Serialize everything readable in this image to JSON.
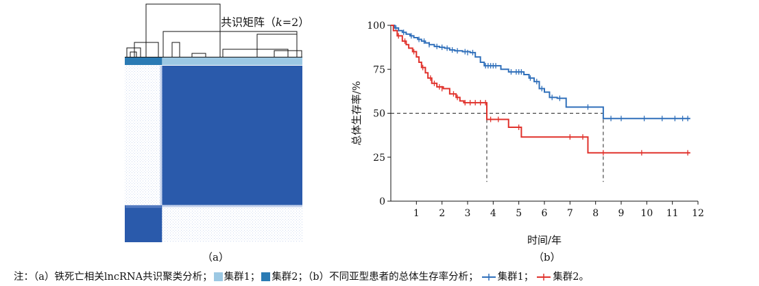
{
  "panel_a": {
    "title": "共识矩阵（k=2）",
    "label": "（a）",
    "colors": {
      "cluster1": "#9cc8e3",
      "cluster2": "#2b7bb4",
      "matrix_high": "#2a5aab",
      "matrix_low": "#ffffff"
    }
  },
  "panel_b": {
    "label": "（b）",
    "colors": {
      "cluster1": "#2f6fba",
      "cluster2": "#e0302a",
      "median_line": "#222222"
    }
  },
  "note": {
    "prefix": "注：（a）铁死亡相关lncRNA共识聚类分析；",
    "cluster1_a": "集群1；",
    "cluster2_a": "集群2；",
    "middle": "（b）不同亚型患者的总体生存率分析；",
    "cluster1_b": "集群1；",
    "cluster2_b": "集群2。"
  },
  "chart_data": [
    {
      "type": "heatmap",
      "title": "共识矩阵（k=2）",
      "clusters": [
        {
          "name": "集群2",
          "color": "#2b7bb4",
          "share": 0.21
        },
        {
          "name": "集群1",
          "color": "#9cc8e3",
          "share": 0.79
        }
      ],
      "blocks": [
        {
          "row": "集群1",
          "col": "集群1",
          "consensus": 1
        },
        {
          "row": "集群2",
          "col": "集群2",
          "consensus": 1
        },
        {
          "row": "集群1",
          "col": "集群2",
          "consensus": 0
        },
        {
          "row": "集群2",
          "col": "集群1",
          "consensus": 0
        }
      ]
    },
    {
      "type": "line",
      "xlabel": "时间/年",
      "ylabel": "总体生存率/%",
      "xlim": [
        0,
        12
      ],
      "ylim": [
        0,
        100
      ],
      "xticks": [
        1,
        2,
        3,
        4,
        5,
        6,
        7,
        8,
        9,
        10,
        11,
        12
      ],
      "yticks": [
        0,
        25,
        50,
        75,
        100
      ],
      "median_line": {
        "y": 50,
        "x_cluster2": 3.75,
        "x_cluster1": 8.3
      },
      "series": [
        {
          "name": "集群1",
          "color": "#2f6fba",
          "steps": [
            [
              0,
              100
            ],
            [
              0.15,
              98.5
            ],
            [
              0.3,
              97
            ],
            [
              0.45,
              96
            ],
            [
              0.6,
              95
            ],
            [
              0.75,
              94
            ],
            [
              0.9,
              93
            ],
            [
              1.05,
              92
            ],
            [
              1.2,
              91
            ],
            [
              1.35,
              90
            ],
            [
              1.5,
              89
            ],
            [
              1.7,
              88
            ],
            [
              1.9,
              87.5
            ],
            [
              2.1,
              87
            ],
            [
              2.3,
              86
            ],
            [
              2.5,
              85.5
            ],
            [
              2.8,
              85
            ],
            [
              3.1,
              84.5
            ],
            [
              3.3,
              82
            ],
            [
              3.5,
              79
            ],
            [
              3.65,
              77
            ],
            [
              4.3,
              75
            ],
            [
              4.6,
              73.5
            ],
            [
              5.2,
              72
            ],
            [
              5.4,
              70
            ],
            [
              5.6,
              68
            ],
            [
              5.8,
              64
            ],
            [
              6.0,
              62
            ],
            [
              6.2,
              59
            ],
            [
              6.5,
              58.5
            ],
            [
              6.85,
              53.5
            ],
            [
              8.3,
              47
            ],
            [
              11.7,
              47
            ]
          ],
          "censored": [
            [
              0.2,
              98.5
            ],
            [
              0.5,
              96
            ],
            [
              0.8,
              94
            ],
            [
              1.1,
              92
            ],
            [
              1.3,
              91
            ],
            [
              1.5,
              89
            ],
            [
              1.8,
              88
            ],
            [
              2.0,
              87.5
            ],
            [
              2.2,
              87
            ],
            [
              2.4,
              86
            ],
            [
              2.6,
              85.5
            ],
            [
              2.9,
              85
            ],
            [
              3.0,
              84.5
            ],
            [
              3.2,
              84.5
            ],
            [
              3.7,
              77
            ],
            [
              3.8,
              77
            ],
            [
              3.9,
              77
            ],
            [
              4.0,
              77
            ],
            [
              4.1,
              77
            ],
            [
              4.7,
              73.5
            ],
            [
              4.9,
              73.5
            ],
            [
              5.0,
              73.5
            ],
            [
              5.1,
              73.5
            ],
            [
              5.45,
              70
            ],
            [
              5.7,
              68
            ],
            [
              5.9,
              64
            ],
            [
              6.3,
              59
            ],
            [
              6.6,
              58.5
            ],
            [
              7.7,
              53.5
            ],
            [
              8.6,
              47
            ],
            [
              9.0,
              47
            ],
            [
              9.9,
              47
            ],
            [
              10.6,
              47
            ],
            [
              11.1,
              47
            ],
            [
              11.4,
              47
            ],
            [
              11.6,
              47
            ]
          ]
        },
        {
          "name": "集群2",
          "color": "#e0302a",
          "steps": [
            [
              0,
              100
            ],
            [
              0.1,
              97
            ],
            [
              0.25,
              94
            ],
            [
              0.45,
              91
            ],
            [
              0.6,
              89
            ],
            [
              0.7,
              87
            ],
            [
              0.85,
              85
            ],
            [
              1.0,
              82
            ],
            [
              1.1,
              79
            ],
            [
              1.2,
              76
            ],
            [
              1.35,
              73
            ],
            [
              1.45,
              70
            ],
            [
              1.6,
              67
            ],
            [
              1.8,
              65
            ],
            [
              2.05,
              64
            ],
            [
              2.3,
              61
            ],
            [
              2.55,
              59
            ],
            [
              2.7,
              57
            ],
            [
              2.85,
              56
            ],
            [
              3.75,
              46.5
            ],
            [
              4.6,
              42
            ],
            [
              5.1,
              36.5
            ],
            [
              7.7,
              27.5
            ],
            [
              11.7,
              27.5
            ]
          ],
          "censored": [
            [
              0.3,
              94
            ],
            [
              0.55,
              91
            ],
            [
              0.9,
              85
            ],
            [
              1.25,
              76
            ],
            [
              1.55,
              70
            ],
            [
              1.7,
              67
            ],
            [
              1.9,
              65
            ],
            [
              2.0,
              64
            ],
            [
              2.45,
              61
            ],
            [
              2.6,
              59
            ],
            [
              2.9,
              56
            ],
            [
              3.1,
              56
            ],
            [
              3.3,
              56
            ],
            [
              3.5,
              56
            ],
            [
              3.7,
              56
            ],
            [
              3.9,
              46.5
            ],
            [
              4.2,
              46.5
            ],
            [
              5.0,
              42
            ],
            [
              7.0,
              36.5
            ],
            [
              7.5,
              36.5
            ],
            [
              8.3,
              27.5
            ],
            [
              9.8,
              27.5
            ],
            [
              11.6,
              27.5
            ]
          ]
        }
      ]
    }
  ]
}
